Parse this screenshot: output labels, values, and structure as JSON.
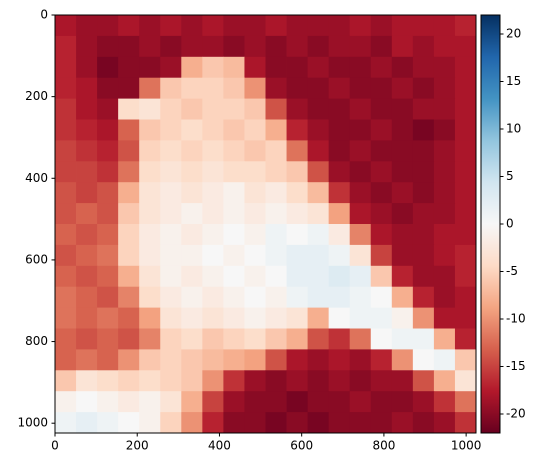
{
  "chart_data": {
    "type": "heatmap",
    "colormap": "RdBu",
    "clim": [
      -22,
      22
    ],
    "colorbar_ticks": [
      -20,
      -15,
      -10,
      -5,
      0,
      5,
      10,
      15,
      20
    ],
    "xlim": [
      0,
      1024
    ],
    "ylim": [
      1024,
      0
    ],
    "xticks": [
      0,
      200,
      400,
      600,
      800,
      1000
    ],
    "yticks": [
      0,
      200,
      400,
      600,
      800,
      1000
    ],
    "values": [
      [
        -18,
        -19,
        -19,
        -18,
        -19,
        -18,
        -19,
        -18,
        -19,
        -19,
        -18,
        -19,
        -19,
        -19,
        -18,
        -19,
        -18,
        -18,
        -18,
        -17
      ],
      [
        -17,
        -19,
        -20,
        -20,
        -19,
        -20,
        -19,
        -19,
        -20,
        -19,
        -20,
        -19,
        -20,
        -19,
        -19,
        -20,
        -18,
        -19,
        -18,
        -18
      ],
      [
        -17,
        -19,
        -21,
        -20,
        -20,
        -19,
        -8,
        -6,
        -7,
        -18,
        -20,
        -20,
        -19,
        -20,
        -20,
        -19,
        -20,
        -19,
        -19,
        -18
      ],
      [
        -17,
        -18,
        -20,
        -20,
        -12,
        -6,
        -5,
        -5,
        -6,
        -10,
        -19,
        -20,
        -20,
        -19,
        -20,
        -20,
        -19,
        -20,
        -19,
        -18
      ],
      [
        -16,
        -18,
        -19,
        -4,
        -3,
        -5,
        -6,
        -5,
        -5,
        -6,
        -14,
        -19,
        -20,
        -20,
        -19,
        -20,
        -20,
        -19,
        -19,
        -18
      ],
      [
        -16,
        -17,
        -18,
        -13,
        -6,
        -5,
        -4,
        -5,
        -6,
        -5,
        -8,
        -17,
        -19,
        -20,
        -20,
        -19,
        -20,
        -21,
        -20,
        -18
      ],
      [
        -15,
        -16,
        -17,
        -14,
        -5,
        -4,
        -5,
        -4,
        -5,
        -6,
        -5,
        -12,
        -18,
        -20,
        -19,
        -20,
        -20,
        -20,
        -19,
        -18
      ],
      [
        -15,
        -15,
        -16,
        -12,
        -4,
        -3,
        -4,
        -3,
        -4,
        -4,
        -5,
        -6,
        -14,
        -19,
        -20,
        -19,
        -20,
        -20,
        -19,
        -18
      ],
      [
        -14,
        -15,
        -14,
        -8,
        -3,
        -2,
        -3,
        -2,
        -1,
        -3,
        -2,
        -4,
        -7,
        -16,
        -19,
        -20,
        -19,
        -20,
        -19,
        -18
      ],
      [
        -14,
        -13,
        -14,
        -6,
        -3,
        -2,
        -1,
        -2,
        -1,
        -2,
        -1,
        -2,
        -3,
        -9,
        -18,
        -19,
        -20,
        -19,
        -19,
        -18
      ],
      [
        -13,
        -14,
        -13,
        -5,
        -2,
        -1,
        -2,
        -1,
        0,
        -1,
        1,
        0,
        1,
        -2,
        -11,
        -18,
        -19,
        -19,
        -18,
        -18
      ],
      [
        -14,
        -13,
        -12,
        -5,
        -2,
        -1,
        -1,
        0,
        -1,
        0,
        1,
        2,
        2,
        1,
        -3,
        -15,
        -19,
        -19,
        -18,
        -17
      ],
      [
        -13,
        -14,
        -13,
        -8,
        -3,
        -1,
        -2,
        -1,
        0,
        -1,
        0,
        2,
        2,
        3,
        2,
        -6,
        -17,
        -19,
        -19,
        -17
      ],
      [
        -12,
        -13,
        -14,
        -11,
        -4,
        -2,
        -1,
        -2,
        -1,
        0,
        -1,
        1,
        2,
        2,
        1,
        0,
        -8,
        -17,
        -19,
        -18
      ],
      [
        -12,
        -13,
        -12,
        -13,
        -9,
        -3,
        -2,
        -3,
        -2,
        -1,
        -2,
        -3,
        -8,
        0,
        1,
        1,
        -1,
        -10,
        -18,
        -18
      ],
      [
        -13,
        -14,
        -13,
        -14,
        -11,
        -5,
        -4,
        -6,
        -5,
        -4,
        -6,
        -8,
        -14,
        -16,
        -12,
        0,
        1,
        1,
        -8,
        -17
      ],
      [
        -13,
        -12,
        -13,
        -10,
        -6,
        -5,
        -6,
        -7,
        -8,
        -9,
        -14,
        -18,
        -19,
        -18,
        -19,
        -17,
        -10,
        0,
        1,
        -6
      ],
      [
        -6,
        -3,
        -4,
        -5,
        -4,
        -5,
        -6,
        -10,
        -16,
        -19,
        -20,
        -19,
        -20,
        -19,
        -20,
        -19,
        -19,
        -14,
        -8,
        -3
      ],
      [
        -1,
        0,
        -1,
        -2,
        -1,
        -3,
        -8,
        -15,
        -19,
        -20,
        -20,
        -21,
        -20,
        -20,
        -19,
        -20,
        -20,
        -19,
        -16,
        -12
      ],
      [
        1,
        2,
        1,
        0,
        -1,
        -5,
        -10,
        -17,
        -20,
        -20,
        -21,
        -20,
        -21,
        -20,
        -20,
        -20,
        -19,
        -20,
        -19,
        -16
      ]
    ]
  }
}
